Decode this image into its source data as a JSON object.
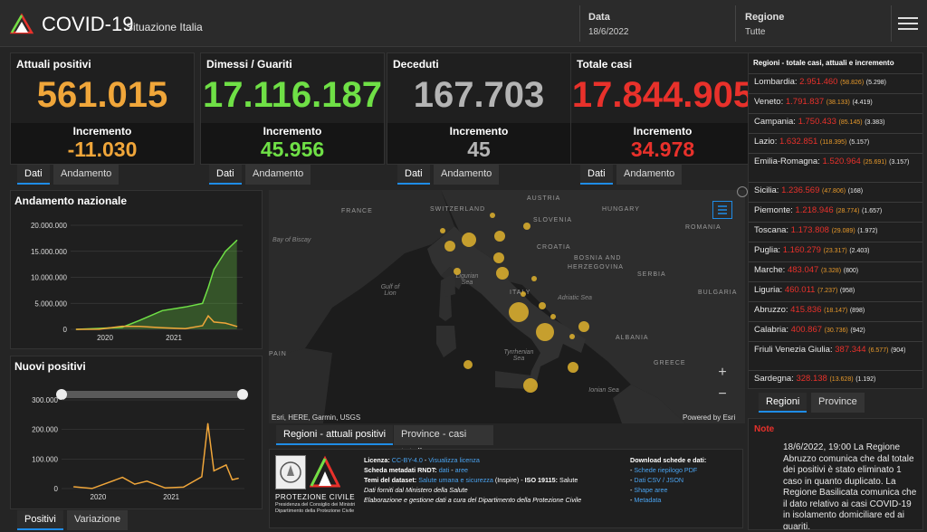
{
  "header": {
    "title": "COVID-19",
    "subtitle": "Situazione Italia",
    "date_label": "Data",
    "date_value": "18/6/2022",
    "region_label": "Regione",
    "region_value": "Tutte"
  },
  "stats": [
    {
      "label": "Attuali positivi",
      "value": "561.015",
      "inc_label": "Incremento",
      "inc_value": "-11.030",
      "color": "#f0a63a",
      "tabs": [
        "Dati",
        "Andamento"
      ]
    },
    {
      "label": "Dimessi / Guariti",
      "value": "17.116.187",
      "inc_label": "Incremento",
      "inc_value": "45.956",
      "color": "#6fe046",
      "tabs": [
        "Dati",
        "Andamento"
      ]
    },
    {
      "label": "Deceduti",
      "value": "167.703",
      "inc_label": "Incremento",
      "inc_value": "45",
      "color": "#b4b4b4",
      "tabs": [
        "Dati",
        "Andamento"
      ]
    },
    {
      "label": "Totale casi",
      "value": "17.844.905",
      "inc_label": "Incremento",
      "inc_value": "34.978",
      "color": "#e8312b",
      "tabs": [
        "Dati",
        "Andamento"
      ]
    }
  ],
  "andamento": {
    "title": "Andamento nazionale",
    "yticks": [
      "20.000.000",
      "15.000.000",
      "10.000.000",
      "5.000.000",
      "0"
    ],
    "xticks": [
      "2020",
      "2021"
    ]
  },
  "nuovi": {
    "title": "Nuovi positivi",
    "yticks": [
      "300.000",
      "200.000",
      "100.000",
      "0"
    ],
    "xticks": [
      "2020",
      "2021"
    ],
    "tabs": [
      "Positivi",
      "Variazione"
    ]
  },
  "chart_data": [
    {
      "type": "area",
      "title": "Andamento nazionale",
      "ylim": [
        0,
        20000000
      ],
      "x": [
        "2020-02",
        "2020-06",
        "2020-10",
        "2021-01",
        "2021-05",
        "2021-09",
        "2021-12",
        "2022-01",
        "2022-02",
        "2022-04",
        "2022-06"
      ],
      "series": [
        {
          "name": "",
          "color": "#6fe046",
          "values": [
            0,
            180000,
            400000,
            1700000,
            3600000,
            4300000,
            5000000,
            8000000,
            11500000,
            15000000,
            17116187
          ]
        },
        {
          "name": "",
          "color": "#f0a63a",
          "values": [
            0,
            20000,
            600000,
            550000,
            300000,
            120000,
            700000,
            2600000,
            1400000,
            1200000,
            561015
          ]
        }
      ]
    },
    {
      "type": "line",
      "title": "Nuovi positivi",
      "ylim": [
        0,
        300000
      ],
      "x": [
        "2020-03",
        "2020-06",
        "2020-11",
        "2021-01",
        "2021-03",
        "2021-06",
        "2021-09",
        "2021-12",
        "2022-01",
        "2022-02",
        "2022-03",
        "2022-04",
        "2022-05",
        "2022-06"
      ],
      "series": [
        {
          "name": "",
          "color": "#f0a63a",
          "values": [
            6000,
            300,
            38000,
            15000,
            25000,
            2000,
            5000,
            40000,
            220000,
            60000,
            70000,
            80000,
            30000,
            35000
          ]
        }
      ]
    }
  ],
  "map": {
    "labels": [
      "FRANCE",
      "SWITZERLAND",
      "AUSTRIA",
      "HUNGARY",
      "SLOVENIA",
      "CROATIA",
      "ROMANIA",
      "BOSNIA AND",
      "HERZEGOVINA",
      "SERBIA",
      "BULGARIA",
      "ITALY",
      "ALBANIA",
      "GREECE"
    ],
    "seas": [
      "Bay of Biscay",
      "Ligurian Sea",
      "Gulf of Lion",
      "Adriatic Sea",
      "Tyrrhenian Sea",
      "Ionian Sea"
    ],
    "attribution": "Esri, HERE, Garmin, USGS",
    "powered": "Powered by Esri",
    "zoom_in": "+",
    "zoom_out": "−",
    "spain_fragment": "PAIN",
    "tabs": [
      "Regioni - attuali positivi",
      "Province - casi totali"
    ]
  },
  "regions_title": "Regioni - totale casi, attuali e incremento",
  "regions": [
    {
      "name": "Lombardia:",
      "tot": "2.951.460",
      "act": "(58.826)",
      "inc": "(5.298)"
    },
    {
      "name": "Veneto:",
      "tot": "1.791.837",
      "act": "(38.133)",
      "inc": "(4.419)"
    },
    {
      "name": "Campania:",
      "tot": "1.750.433",
      "act": "(85.145)",
      "inc": "(3.383)"
    },
    {
      "name": "Lazio:",
      "tot": "1.632.851",
      "act": "(118.395)",
      "inc": "(5.157)"
    },
    {
      "name": "Emilia-Romagna:",
      "tot": "1.520.964",
      "act": "(25.691)",
      "inc": "(3.157)"
    },
    {
      "name": "Sicilia:",
      "tot": "1.236.569",
      "act": "(47.806)",
      "inc": "(168)"
    },
    {
      "name": "Piemonte:",
      "tot": "1.218.946",
      "act": "(28.774)",
      "inc": "(1.657)"
    },
    {
      "name": "Toscana:",
      "tot": "1.173.808",
      "act": "(29.089)",
      "inc": "(1.972)"
    },
    {
      "name": "Puglia:",
      "tot": "1.160.279",
      "act": "(23.317)",
      "inc": "(2.403)"
    },
    {
      "name": "Marche:",
      "tot": "483.047",
      "act": "(3.328)",
      "inc": "(800)"
    },
    {
      "name": "Liguria:",
      "tot": "460.011",
      "act": "(7.237)",
      "inc": "(958)"
    },
    {
      "name": "Abruzzo:",
      "tot": "415.836",
      "act": "(18.147)",
      "inc": "(898)"
    },
    {
      "name": "Calabria:",
      "tot": "400.867",
      "act": "(30.736)",
      "inc": "(942)"
    },
    {
      "name": "Friuli Venezia Giulia:",
      "tot": "387.344",
      "act": "(6.577)",
      "inc": "(904)"
    },
    {
      "name": "Sardegna:",
      "tot": "328.138",
      "act": "(13.628)",
      "inc": "(1.192)"
    }
  ],
  "regions_tabs": [
    "Regioni",
    "Province"
  ],
  "note": {
    "title": "Note",
    "text": "18/6/2022, 19:00 La Regione Abruzzo comunica che dal totale dei positivi è stato eliminato 1 caso in quanto duplicato. La Regione Basilicata comunica che il dato relativo ai casi COVID-19 in isolamento domiciliare ed ai guariti,"
  },
  "info": {
    "protezione": "PROTEZIONE CIVILE",
    "protezione_sub1": "Presidenza del Consiglio dei Ministri",
    "protezione_sub2": "Dipartimento della Protezione Civile",
    "licenza_label": "Licenza:",
    "licenza_link": "CC-BY-4.0",
    "licenza_sep": " - ",
    "licenza_link2": "Visualizza licenza",
    "scheda_label": "Scheda metadati RNDT:",
    "scheda_link1": "dati",
    "scheda_link2": "aree",
    "temi_label": "Temi del dataset:",
    "temi_link": "Salute umana e sicurezza",
    "temi_rest": "(Inspire) -",
    "iso_label": "ISO 19115:",
    "iso_value": "Salute",
    "dati_forniti": "Dati forniti dal Ministero della Salute",
    "elaborazione": "Elaborazione e gestione dati a cura del Dipartimento della Protezione Civile",
    "download_title": "Download schede e dati:",
    "downloads": [
      "Schede riepilogo PDF",
      "Dati CSV / JSON",
      "Shape aree",
      "Metadata"
    ]
  },
  "colors": {
    "accent": "#1f8ce6",
    "red": "#e8312b",
    "orange": "#f0a63a",
    "green": "#6fe046"
  }
}
